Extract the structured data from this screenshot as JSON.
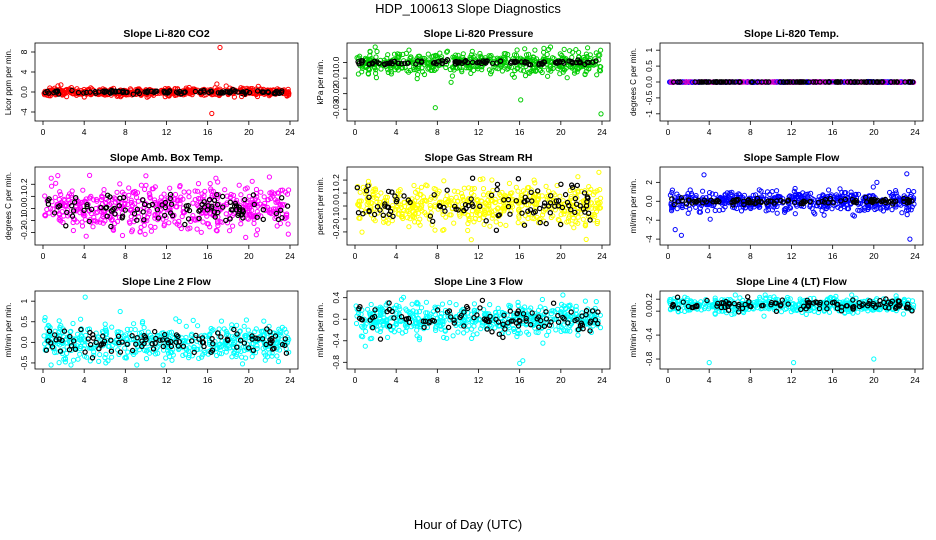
{
  "title": "HDP_100613  Slope Diagnostics",
  "xlabel": "Hour of Day (UTC)",
  "chart_data": [
    {
      "type": "scatter",
      "title": "Slope Li-820 CO2",
      "ylabel": "Licor ppm per min.",
      "color": "#ff0000",
      "xlim": [
        0,
        24
      ],
      "ylim": [
        -5,
        9
      ],
      "yticks": [
        -4,
        0,
        4,
        8
      ],
      "xticks": [
        0,
        4,
        8,
        12,
        16,
        20,
        24
      ],
      "base_spread": 0.2,
      "scatter_spread": 0.4,
      "seed": 11,
      "outliers": [
        {
          "x": 17.2,
          "y": 8.9
        },
        {
          "x": 16.9,
          "y": 1.6
        },
        {
          "x": 16.4,
          "y": -4.3
        },
        {
          "x": 17.8,
          "y": 1.2
        },
        {
          "x": 18.6,
          "y": -1.0
        },
        {
          "x": 19.3,
          "y": -0.9
        },
        {
          "x": 14.2,
          "y": 0.9
        }
      ]
    },
    {
      "type": "scatter",
      "title": "Slope Li-820 Pressure",
      "ylabel": "kPa per min.",
      "color": "#00cc00",
      "xlim": [
        0,
        24
      ],
      "ylim": [
        -0.035,
        0.01
      ],
      "yticks": [
        -0.03,
        -0.02,
        -0.01,
        0.0
      ],
      "xticks": [
        0,
        4,
        8,
        12,
        16,
        20,
        24
      ],
      "base_spread": 0.0008,
      "scatter_spread": 0.0035,
      "seed": 23,
      "outliers": [
        {
          "x": 7.8,
          "y": -0.029
        },
        {
          "x": 23.9,
          "y": -0.033
        },
        {
          "x": 16.1,
          "y": -0.024
        },
        {
          "x": 22.6,
          "y": 0.0095
        },
        {
          "x": 15.5,
          "y": 0.005
        },
        {
          "x": 2.0,
          "y": -0.007
        }
      ]
    },
    {
      "type": "scatter",
      "title": "Slope Li-820 Temp.",
      "ylabel": "degrees C per min.",
      "color": "#cc00cc",
      "color2": "#0000ff",
      "xlim": [
        0,
        24
      ],
      "ylim": [
        -1.1,
        1.1
      ],
      "yticks": [
        -1.0,
        -0.5,
        0.0,
        0.5,
        1.0
      ],
      "xticks": [
        0,
        4,
        8,
        12,
        16,
        20,
        24
      ],
      "base_spread": 0.0,
      "scatter_spread": 0.005,
      "seed": 5,
      "outliers": []
    },
    {
      "type": "scatter",
      "title": "Slope Amb. Box Temp.",
      "ylabel": "degrees C per min.",
      "color": "#ff00ff",
      "xlim": [
        0,
        24
      ],
      "ylim": [
        -0.27,
        0.31
      ],
      "yticks": [
        -0.2,
        -0.1,
        0.0,
        0.1,
        0.2
      ],
      "xticks": [
        0,
        4,
        8,
        12,
        16,
        20,
        24
      ],
      "base_spread": 0.07,
      "scatter_spread": 0.09,
      "seed": 37,
      "outliers": [
        {
          "x": 19.7,
          "y": -0.24
        },
        {
          "x": 0.8,
          "y": 0.25
        },
        {
          "x": 10.0,
          "y": 0.27
        },
        {
          "x": 4.2,
          "y": -0.23
        },
        {
          "x": 22.0,
          "y": 0.26
        }
      ]
    },
    {
      "type": "scatter",
      "title": "Slope Gas Stream RH",
      "ylabel": "percent per min.",
      "color": "#ffff00",
      "xlim": [
        0,
        24
      ],
      "ylim": [
        -0.27,
        0.27
      ],
      "yticks": [
        -0.2,
        -0.1,
        0.0,
        0.1,
        0.2
      ],
      "xticks": [
        0,
        4,
        8,
        12,
        16,
        20,
        24
      ],
      "base_spread": 0.07,
      "scatter_spread": 0.08,
      "seed": 41,
      "outliers": [
        {
          "x": 23.7,
          "y": 0.26
        },
        {
          "x": 11.3,
          "y": -0.26
        },
        {
          "x": 1.3,
          "y": 0.19
        },
        {
          "x": 17.4,
          "y": 0.2
        }
      ]
    },
    {
      "type": "scatter",
      "title": "Slope Sample Flow",
      "ylabel": "ml/min per min.",
      "color": "#0000ff",
      "xlim": [
        0,
        24
      ],
      "ylim": [
        -4.2,
        3.2
      ],
      "yticks": [
        -4,
        -2,
        0,
        2
      ],
      "xticks": [
        0,
        4,
        8,
        12,
        16,
        20,
        24
      ],
      "base_spread": 0.15,
      "scatter_spread": 0.55,
      "seed": 53,
      "outliers": [
        {
          "x": 0.7,
          "y": -3.0
        },
        {
          "x": 1.3,
          "y": -3.6
        },
        {
          "x": 23.5,
          "y": -4.0
        },
        {
          "x": 3.5,
          "y": 2.8
        },
        {
          "x": 23.2,
          "y": 2.9
        },
        {
          "x": 20.3,
          "y": 2.0
        },
        {
          "x": 4.1,
          "y": -1.9
        }
      ]
    },
    {
      "type": "scatter",
      "title": "Slope Line 2 Flow",
      "ylabel": "ml/min per min.",
      "color": "#00ffff",
      "xlim": [
        0,
        24
      ],
      "ylim": [
        -0.55,
        1.15
      ],
      "yticks": [
        -0.5,
        0.0,
        0.5,
        1.0
      ],
      "xticks": [
        0,
        4,
        8,
        12,
        16,
        20,
        24
      ],
      "base_spread": 0.15,
      "scatter_spread": 0.2,
      "seed": 67,
      "outliers": [
        {
          "x": 4.1,
          "y": 1.1
        },
        {
          "x": 0.2,
          "y": 0.6
        },
        {
          "x": 6.1,
          "y": -0.5
        },
        {
          "x": 7.5,
          "y": 0.75
        }
      ]
    },
    {
      "type": "scatter",
      "title": "Slope Line 3 Flow",
      "ylabel": "ml/min per min.",
      "color": "#00ffff",
      "xlim": [
        0,
        24
      ],
      "ylim": [
        -0.85,
        0.45
      ],
      "yticks": [
        -0.8,
        -0.4,
        0.0,
        0.4
      ],
      "xticks": [
        0,
        4,
        8,
        12,
        16,
        20,
        24
      ],
      "base_spread": 0.13,
      "scatter_spread": 0.14,
      "seed": 71,
      "outliers": [
        {
          "x": 16.3,
          "y": -0.77
        },
        {
          "x": 16.0,
          "y": -0.82
        },
        {
          "x": 1.0,
          "y": -0.5
        },
        {
          "x": 20.2,
          "y": 0.45
        }
      ]
    },
    {
      "type": "scatter",
      "title": "Slope Line 4 (LT) Flow",
      "ylabel": "ml/min per min.",
      "color": "#00ffff",
      "xlim": [
        0,
        24
      ],
      "ylim": [
        -0.9,
        0.27
      ],
      "yticks": [
        -0.8,
        -0.4,
        0.0,
        0.2
      ],
      "xticks": [
        0,
        4,
        8,
        12,
        16,
        20,
        24
      ],
      "base_spread": 0.05,
      "scatter_spread": 0.06,
      "center": 0.1,
      "seed": 89,
      "outliers": [
        {
          "x": 4.0,
          "y": -0.86
        },
        {
          "x": 12.2,
          "y": -0.86
        },
        {
          "x": 20.0,
          "y": -0.8
        },
        {
          "x": 10.3,
          "y": 0.24
        }
      ]
    }
  ]
}
